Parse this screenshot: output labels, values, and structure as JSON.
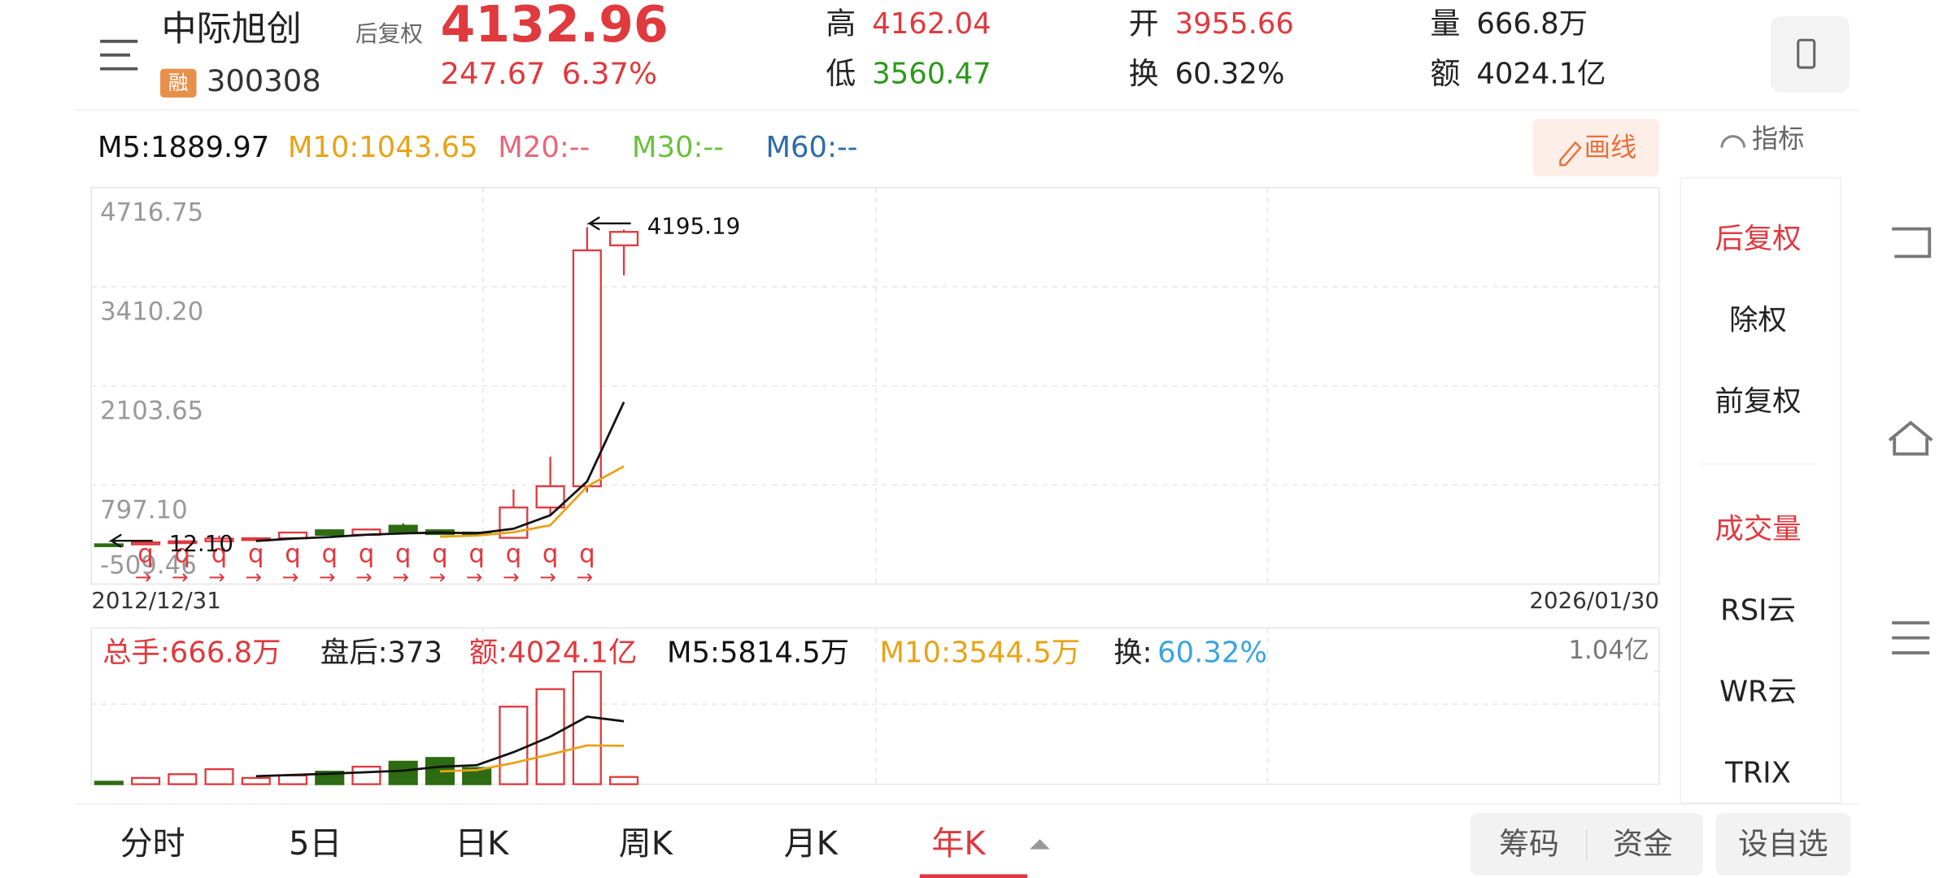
{
  "header": {
    "name": "中际旭创",
    "badge": "融",
    "code": "300308",
    "adjust_label": "后复权",
    "price": "4132.96",
    "change": "247.67",
    "change_pct": "6.37%",
    "stats": [
      {
        "label": "高",
        "value": "4162.04",
        "color": "#e0393e"
      },
      {
        "label": "低",
        "value": "3560.47",
        "color": "#2a9a1a"
      },
      {
        "label": "开",
        "value": "3955.66",
        "color": "#e0393e"
      },
      {
        "label": "换",
        "value": "60.32%",
        "color": "#222222"
      },
      {
        "label": "量",
        "value": "666.8万",
        "color": "#222222"
      },
      {
        "label": "额",
        "value": "4024.1亿",
        "color": "#222222"
      }
    ]
  },
  "ma_legend": [
    {
      "text": "M5:1889.97",
      "color": "#111111"
    },
    {
      "text": "M10:1043.65",
      "color": "#e8a317"
    },
    {
      "text": "M20:--",
      "color": "#e8677a"
    },
    {
      "text": "M30:--",
      "color": "#6ac13c"
    },
    {
      "text": "M60:--",
      "color": "#2e6ca8"
    }
  ],
  "draw_button": "画线",
  "indicator_button": "指标",
  "side_menu": [
    {
      "text": "后复权",
      "color": "#e0393e"
    },
    {
      "text": "除权",
      "color": "#222222"
    },
    {
      "text": "前复权",
      "color": "#222222"
    },
    {
      "text": "成交量",
      "color": "#e0393e"
    },
    {
      "text": "RSI云",
      "color": "#222222"
    },
    {
      "text": "WR云",
      "color": "#222222"
    },
    {
      "text": "TRIX",
      "color": "#222222"
    }
  ],
  "volume_legend": [
    {
      "text": "总手:666.8万",
      "color": "#e0393e"
    },
    {
      "text": "盘后:373",
      "color": "#222222"
    },
    {
      "text": "额:4024.1亿",
      "color": "#e0393e"
    },
    {
      "text": "M5:5814.5万",
      "color": "#111111"
    },
    {
      "text": "M10:3544.5万",
      "color": "#e8a317"
    },
    {
      "text": "换:",
      "color": "#222222"
    },
    {
      "text": "60.32%",
      "color": "#3aa4e0"
    }
  ],
  "chart_data": [
    {
      "type": "candlestick",
      "open": [
        15,
        14,
        40,
        55,
        80,
        95,
        200,
        140,
        260,
        200,
        170,
        100,
        500,
        780,
        3955.66
      ],
      "high": [
        16,
        45,
        60,
        130,
        100,
        180,
        210,
        220,
        290,
        210,
        180,
        740,
        1170,
        4195.19,
        4162.04
      ],
      "low": [
        12.1,
        12.5,
        35,
        50,
        75,
        85,
        130,
        130,
        170,
        140,
        140,
        90,
        400,
        700,
        3560.47
      ],
      "close": [
        13,
        40,
        55,
        90,
        95,
        170,
        140,
        210,
        180,
        150,
        150,
        500,
        780,
        3890,
        4132.96
      ],
      "up_color": "#e0393e",
      "down_color": "#2e6b12",
      "ylim": [
        -509.46,
        4716.75
      ],
      "yticks": [
        -509.46,
        {
          "value": 797.1,
          "label": "797.10"
        },
        2103.65,
        {
          "value": 3410.2,
          "label": "3410.20"
        },
        4716.75
      ],
      "x_labels": [
        "2012/12/31",
        "2026/01/30"
      ],
      "ma": [
        {
          "color": "#111111",
          "values": [
            null,
            null,
            null,
            null,
            58.8,
            90,
            110,
            141,
            159,
            170,
            160,
            220,
            398,
            843,
            1889.97
          ]
        },
        {
          "color": "#e8a317",
          "values": [
            null,
            null,
            null,
            null,
            null,
            null,
            null,
            null,
            null,
            115,
            130,
            175,
            266,
            777,
            1043.65
          ]
        }
      ],
      "annotations": [
        {
          "index": 13,
          "value": 4195.19
        },
        {
          "index": 0,
          "value": 12.1,
          "label": "12.10"
        }
      ],
      "markers": [
        "q",
        "q",
        "q",
        "q",
        "q",
        "q",
        "q",
        "q",
        "q",
        "q",
        "q",
        "q",
        "q"
      ],
      "marker_arrows": [
        "→",
        "→",
        "→",
        "→",
        "→",
        "→",
        "→",
        "→",
        "→",
        "→",
        "→",
        "→",
        "→"
      ],
      "grid": true
    },
    {
      "type": "bar",
      "values": [
        231,
        578,
        924,
        1387,
        578,
        809,
        1156,
        1618,
        2080,
        2427,
        1502,
        7164,
        8782,
        10400,
        666.8
      ],
      "up_color": "#e0393e",
      "down_color": "#2e6b12",
      "ylim": [
        0,
        10400
      ],
      "yticks": [
        {
          "value": 10400,
          "label": "1.04亿"
        }
      ],
      "ma": [
        {
          "color": "#111111",
          "values": [
            null,
            null,
            null,
            null,
            740,
            855,
            971,
            1110,
            1248,
            1618,
            1757,
            2958,
            4395,
            6240,
            5814.5
          ]
        },
        {
          "color": "#e8a317",
          "values": [
            null,
            null,
            null,
            null,
            null,
            null,
            null,
            null,
            null,
            1179,
            1306,
            1964,
            2750,
            3582,
            3544.5
          ]
        }
      ]
    }
  ],
  "tabs": [
    {
      "text": "分时"
    },
    {
      "text": "5日"
    },
    {
      "text": "日K"
    },
    {
      "text": "周K"
    },
    {
      "text": "月K"
    },
    {
      "text": "年K",
      "active": true
    }
  ],
  "buttons": [
    "筹码",
    "资金",
    "设自选"
  ]
}
